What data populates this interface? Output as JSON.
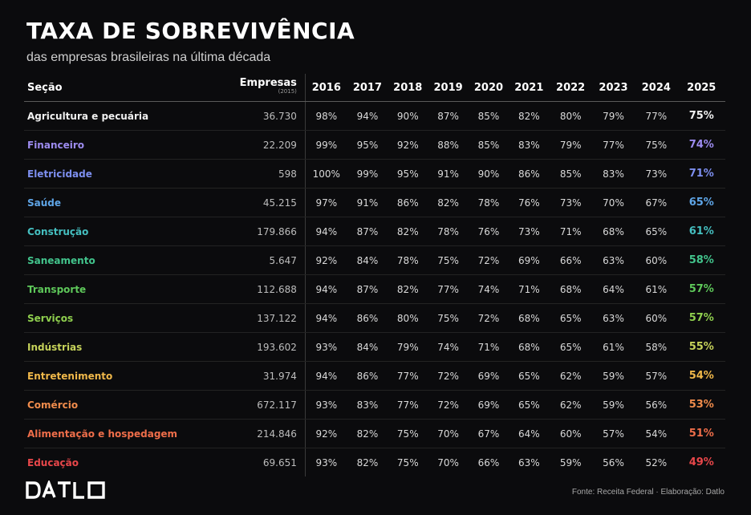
{
  "title": "TAXA DE SOBREVIVÊNCIA",
  "subtitle": "das empresas brasileiras na última década",
  "source": "Fonte: Receita Federal · Elaboração: Datlo",
  "logo": {
    "text": "DATLO",
    "icon": "datlo-logo"
  },
  "chart_data": {
    "type": "table",
    "title": "TAXA DE SOBREVIVÊNCIA",
    "subtitle": "das empresas brasileiras na última década",
    "headers": {
      "section": "Seção",
      "companies": "Empresas",
      "companies_sub": "(2015)",
      "years": [
        "2016",
        "2017",
        "2018",
        "2019",
        "2020",
        "2021",
        "2022",
        "2023",
        "2024",
        "2025"
      ]
    },
    "rows": [
      {
        "section": "Agricultura e pecuária",
        "companies": "36.730",
        "color": "#f0f0f0",
        "values": [
          "98%",
          "94%",
          "90%",
          "87%",
          "85%",
          "82%",
          "80%",
          "79%",
          "77%",
          "75%"
        ]
      },
      {
        "section": "Financeiro",
        "companies": "22.209",
        "color": "#9d8cf0",
        "values": [
          "99%",
          "95%",
          "92%",
          "88%",
          "85%",
          "83%",
          "79%",
          "77%",
          "75%",
          "74%"
        ]
      },
      {
        "section": "Eletricidade",
        "companies": "598",
        "color": "#7d8ff0",
        "values": [
          "100%",
          "99%",
          "95%",
          "91%",
          "90%",
          "86%",
          "85%",
          "83%",
          "73%",
          "71%"
        ]
      },
      {
        "section": "Saúde",
        "companies": "45.215",
        "color": "#5fa6e8",
        "values": [
          "97%",
          "91%",
          "86%",
          "82%",
          "78%",
          "76%",
          "73%",
          "70%",
          "67%",
          "65%"
        ]
      },
      {
        "section": "Construção",
        "companies": "179.866",
        "color": "#45bfc0",
        "values": [
          "94%",
          "87%",
          "82%",
          "78%",
          "76%",
          "73%",
          "71%",
          "68%",
          "65%",
          "61%"
        ]
      },
      {
        "section": "Saneamento",
        "companies": "5.647",
        "color": "#42c48c",
        "values": [
          "92%",
          "84%",
          "78%",
          "75%",
          "72%",
          "69%",
          "66%",
          "63%",
          "60%",
          "58%"
        ]
      },
      {
        "section": "Transporte",
        "companies": "112.688",
        "color": "#5ec85a",
        "values": [
          "94%",
          "87%",
          "82%",
          "77%",
          "74%",
          "71%",
          "68%",
          "64%",
          "61%",
          "57%"
        ]
      },
      {
        "section": "Serviços",
        "companies": "137.122",
        "color": "#8fcf4e",
        "values": [
          "94%",
          "86%",
          "80%",
          "75%",
          "72%",
          "68%",
          "65%",
          "63%",
          "60%",
          "57%"
        ]
      },
      {
        "section": "Indústrias",
        "companies": "193.602",
        "color": "#c6d25a",
        "values": [
          "93%",
          "84%",
          "79%",
          "74%",
          "71%",
          "68%",
          "65%",
          "61%",
          "58%",
          "55%"
        ]
      },
      {
        "section": "Entretenimento",
        "companies": "31.974",
        "color": "#f0b84a",
        "values": [
          "94%",
          "86%",
          "77%",
          "72%",
          "69%",
          "65%",
          "62%",
          "59%",
          "57%",
          "54%"
        ]
      },
      {
        "section": "Comércio",
        "companies": "672.117",
        "color": "#f08c4c",
        "values": [
          "93%",
          "83%",
          "77%",
          "72%",
          "69%",
          "65%",
          "62%",
          "59%",
          "56%",
          "53%"
        ]
      },
      {
        "section": "Alimentação e hospedagem",
        "companies": "214.846",
        "color": "#ef6e4a",
        "values": [
          "92%",
          "82%",
          "75%",
          "70%",
          "67%",
          "64%",
          "60%",
          "57%",
          "54%",
          "51%"
        ]
      },
      {
        "section": "Educação",
        "companies": "69.651",
        "color": "#e8474a",
        "values": [
          "93%",
          "82%",
          "75%",
          "70%",
          "66%",
          "63%",
          "59%",
          "56%",
          "52%",
          "49%"
        ]
      }
    ]
  }
}
